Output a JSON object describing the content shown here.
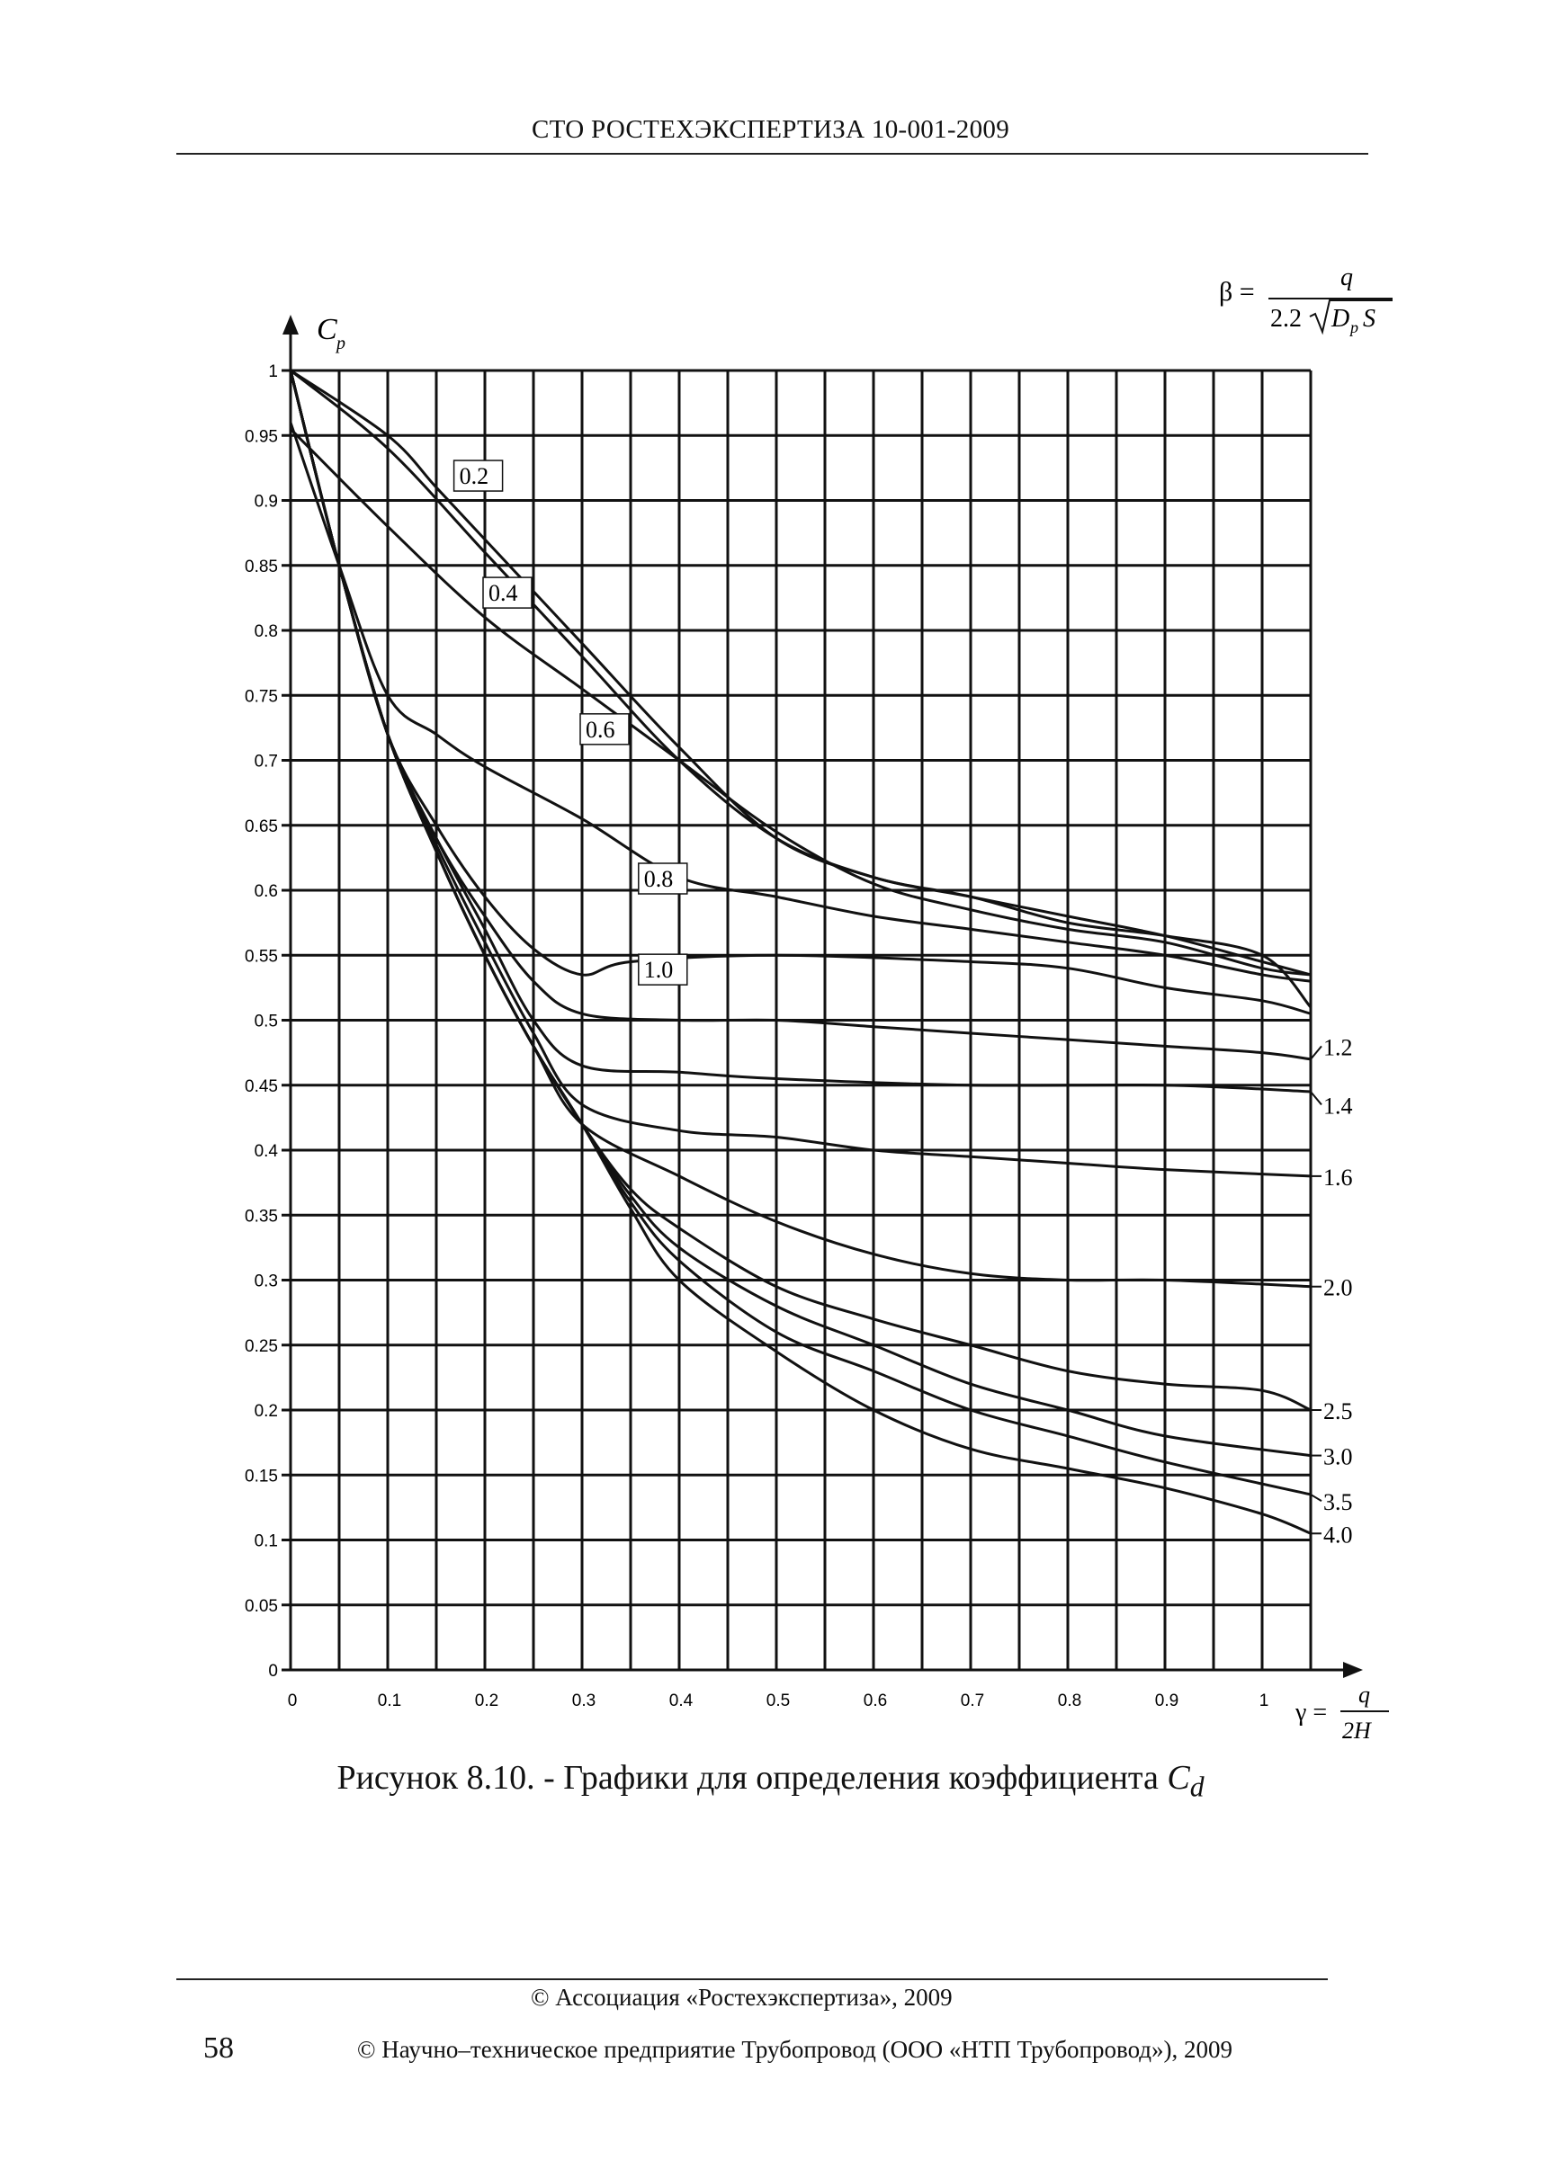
{
  "header": {
    "title": "СТО РОСТЕХЭКСПЕРТИЗА 10-001-2009"
  },
  "chart_data": {
    "type": "line",
    "ylabel": "C",
    "ylabel_sub": "p",
    "xlabel": "γ = q/2H",
    "xlabel_parts": {
      "lhs": "γ =",
      "num": "q",
      "den": "2H"
    },
    "beta_formula": {
      "lhs": "β =",
      "num": "q",
      "den_coef": "2.2",
      "den_rad": "D",
      "den_rad_sub": "p",
      "den_rad_tail": "S"
    },
    "xlim": [
      0,
      1.05
    ],
    "ylim": [
      0,
      1
    ],
    "x_ticks": [
      "0",
      "0.1",
      "0.2",
      "0.3",
      "0.4",
      "0.5",
      "0.6",
      "0.7",
      "0.8",
      "0.9",
      "1"
    ],
    "y_ticks": [
      "0",
      "0.05",
      "0.1",
      "0.15",
      "0.2",
      "0.25",
      "0.3",
      "0.35",
      "0.4",
      "0.45",
      "0.5",
      "0.55",
      "0.6",
      "0.65",
      "0.7",
      "0.75",
      "0.8",
      "0.85",
      "0.9",
      "0.95",
      "1"
    ],
    "grid": true,
    "series": [
      {
        "name": "0.2",
        "points": [
          [
            0,
            1.0
          ],
          [
            0.1,
            0.95
          ],
          [
            0.15,
            0.91
          ],
          [
            0.2,
            0.87
          ],
          [
            0.3,
            0.79
          ],
          [
            0.4,
            0.71
          ],
          [
            0.5,
            0.64
          ],
          [
            0.6,
            0.61
          ],
          [
            0.7,
            0.595
          ],
          [
            0.8,
            0.58
          ],
          [
            0.9,
            0.565
          ],
          [
            1.0,
            0.545
          ],
          [
            1.05,
            0.535
          ]
        ]
      },
      {
        "name": "0.4",
        "points": [
          [
            0,
            1.0
          ],
          [
            0.1,
            0.94
          ],
          [
            0.2,
            0.86
          ],
          [
            0.3,
            0.78
          ],
          [
            0.4,
            0.7
          ],
          [
            0.5,
            0.64
          ],
          [
            0.6,
            0.61
          ],
          [
            0.7,
            0.595
          ],
          [
            0.8,
            0.575
          ],
          [
            0.9,
            0.565
          ],
          [
            1.0,
            0.55
          ],
          [
            1.05,
            0.51
          ]
        ]
      },
      {
        "name": "0.6",
        "points": [
          [
            0,
            0.955
          ],
          [
            0.1,
            0.88
          ],
          [
            0.2,
            0.81
          ],
          [
            0.3,
            0.755
          ],
          [
            0.4,
            0.7
          ],
          [
            0.5,
            0.645
          ],
          [
            0.6,
            0.605
          ],
          [
            0.7,
            0.585
          ],
          [
            0.8,
            0.57
          ],
          [
            0.9,
            0.56
          ],
          [
            1.0,
            0.54
          ],
          [
            1.05,
            0.535
          ]
        ]
      },
      {
        "name": "0.8",
        "points": [
          [
            0,
            0.96
          ],
          [
            0.05,
            0.85
          ],
          [
            0.1,
            0.75
          ],
          [
            0.15,
            0.72
          ],
          [
            0.2,
            0.695
          ],
          [
            0.3,
            0.655
          ],
          [
            0.4,
            0.61
          ],
          [
            0.5,
            0.595
          ],
          [
            0.6,
            0.58
          ],
          [
            0.7,
            0.57
          ],
          [
            0.8,
            0.56
          ],
          [
            0.9,
            0.55
          ],
          [
            1.0,
            0.535
          ],
          [
            1.05,
            0.53
          ]
        ]
      },
      {
        "name": "1.0",
        "points": [
          [
            0,
            1.0
          ],
          [
            0.05,
            0.85
          ],
          [
            0.1,
            0.72
          ],
          [
            0.15,
            0.65
          ],
          [
            0.2,
            0.595
          ],
          [
            0.25,
            0.555
          ],
          [
            0.3,
            0.535
          ],
          [
            0.35,
            0.545
          ],
          [
            0.5,
            0.55
          ],
          [
            0.7,
            0.545
          ],
          [
            0.8,
            0.54
          ],
          [
            0.9,
            0.525
          ],
          [
            1.0,
            0.515
          ],
          [
            1.05,
            0.505
          ]
        ]
      },
      {
        "name": "1.2",
        "points": [
          [
            0,
            1.0
          ],
          [
            0.05,
            0.85
          ],
          [
            0.1,
            0.72
          ],
          [
            0.15,
            0.64
          ],
          [
            0.2,
            0.58
          ],
          [
            0.25,
            0.53
          ],
          [
            0.3,
            0.505
          ],
          [
            0.4,
            0.5
          ],
          [
            0.5,
            0.5
          ],
          [
            0.6,
            0.495
          ],
          [
            0.7,
            0.49
          ],
          [
            0.8,
            0.485
          ],
          [
            0.9,
            0.48
          ],
          [
            1.0,
            0.475
          ],
          [
            1.05,
            0.47
          ]
        ]
      },
      {
        "name": "1.4",
        "points": [
          [
            0,
            1.0
          ],
          [
            0.05,
            0.85
          ],
          [
            0.1,
            0.72
          ],
          [
            0.15,
            0.64
          ],
          [
            0.2,
            0.57
          ],
          [
            0.25,
            0.5
          ],
          [
            0.3,
            0.465
          ],
          [
            0.4,
            0.46
          ],
          [
            0.5,
            0.455
          ],
          [
            0.7,
            0.45
          ],
          [
            0.9,
            0.45
          ],
          [
            1.05,
            0.445
          ]
        ]
      },
      {
        "name": "1.6",
        "points": [
          [
            0,
            1.0
          ],
          [
            0.05,
            0.85
          ],
          [
            0.1,
            0.72
          ],
          [
            0.15,
            0.635
          ],
          [
            0.2,
            0.56
          ],
          [
            0.25,
            0.49
          ],
          [
            0.3,
            0.435
          ],
          [
            0.4,
            0.415
          ],
          [
            0.5,
            0.41
          ],
          [
            0.6,
            0.4
          ],
          [
            0.7,
            0.395
          ],
          [
            0.8,
            0.39
          ],
          [
            0.9,
            0.385
          ],
          [
            1.05,
            0.38
          ]
        ]
      },
      {
        "name": "2.0",
        "points": [
          [
            0,
            1.0
          ],
          [
            0.05,
            0.85
          ],
          [
            0.1,
            0.72
          ],
          [
            0.15,
            0.63
          ],
          [
            0.2,
            0.55
          ],
          [
            0.25,
            0.48
          ],
          [
            0.3,
            0.42
          ],
          [
            0.4,
            0.38
          ],
          [
            0.5,
            0.345
          ],
          [
            0.6,
            0.32
          ],
          [
            0.7,
            0.305
          ],
          [
            0.8,
            0.3
          ],
          [
            0.9,
            0.3
          ],
          [
            1.05,
            0.295
          ]
        ]
      },
      {
        "name": "2.5",
        "points": [
          [
            0,
            1.0
          ],
          [
            0.05,
            0.85
          ],
          [
            0.1,
            0.72
          ],
          [
            0.15,
            0.63
          ],
          [
            0.2,
            0.55
          ],
          [
            0.25,
            0.48
          ],
          [
            0.3,
            0.42
          ],
          [
            0.35,
            0.37
          ],
          [
            0.4,
            0.34
          ],
          [
            0.5,
            0.295
          ],
          [
            0.6,
            0.27
          ],
          [
            0.7,
            0.25
          ],
          [
            0.8,
            0.23
          ],
          [
            0.9,
            0.22
          ],
          [
            1.0,
            0.215
          ],
          [
            1.05,
            0.2
          ]
        ]
      },
      {
        "name": "3.0",
        "points": [
          [
            0,
            1.0
          ],
          [
            0.05,
            0.85
          ],
          [
            0.1,
            0.72
          ],
          [
            0.15,
            0.63
          ],
          [
            0.2,
            0.55
          ],
          [
            0.25,
            0.48
          ],
          [
            0.3,
            0.42
          ],
          [
            0.35,
            0.365
          ],
          [
            0.4,
            0.325
          ],
          [
            0.5,
            0.28
          ],
          [
            0.6,
            0.25
          ],
          [
            0.7,
            0.22
          ],
          [
            0.8,
            0.2
          ],
          [
            0.9,
            0.18
          ],
          [
            1.05,
            0.165
          ]
        ]
      },
      {
        "name": "3.5",
        "points": [
          [
            0,
            1.0
          ],
          [
            0.05,
            0.85
          ],
          [
            0.1,
            0.72
          ],
          [
            0.15,
            0.63
          ],
          [
            0.2,
            0.55
          ],
          [
            0.25,
            0.48
          ],
          [
            0.3,
            0.42
          ],
          [
            0.35,
            0.36
          ],
          [
            0.4,
            0.315
          ],
          [
            0.5,
            0.26
          ],
          [
            0.6,
            0.23
          ],
          [
            0.7,
            0.2
          ],
          [
            0.8,
            0.18
          ],
          [
            0.9,
            0.16
          ],
          [
            1.05,
            0.135
          ]
        ]
      },
      {
        "name": "4.0",
        "points": [
          [
            0,
            1.0
          ],
          [
            0.05,
            0.85
          ],
          [
            0.1,
            0.72
          ],
          [
            0.15,
            0.63
          ],
          [
            0.2,
            0.55
          ],
          [
            0.25,
            0.48
          ],
          [
            0.3,
            0.42
          ],
          [
            0.35,
            0.355
          ],
          [
            0.4,
            0.3
          ],
          [
            0.5,
            0.245
          ],
          [
            0.6,
            0.2
          ],
          [
            0.7,
            0.17
          ],
          [
            0.8,
            0.155
          ],
          [
            0.9,
            0.14
          ],
          [
            1.0,
            0.12
          ],
          [
            1.05,
            0.105
          ]
        ]
      }
    ]
  },
  "caption": {
    "prefix": "Рисунок 8.10. - Графики для определения коэффициента",
    "symbol": "C",
    "symbol_sub": "d"
  },
  "footer": {
    "line1": "© Ассоциация «Ростехэкспертиза», 2009",
    "page_number": "58",
    "line2": "© Научно–техническое предприятие Трубопровод (ООО «НТП Трубопровод»), 2009"
  }
}
